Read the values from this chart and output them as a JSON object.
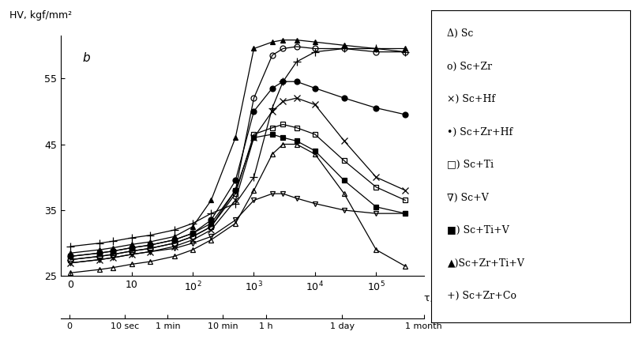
{
  "ylabel": "HV, kgf/mm²",
  "xmin": 0.7,
  "xmax": 600000,
  "ymin": 25,
  "ymax": 61.5,
  "yticks": [
    25,
    35,
    45,
    55
  ],
  "xticks_top": [
    1,
    10,
    100,
    1000,
    10000,
    100000
  ],
  "xtick_labels_top": [
    "0",
    "10",
    "10$^2$",
    "10$^3$",
    "10$^4$",
    "10$^5$"
  ],
  "bottom_time_labels": [
    "0",
    "10 sec",
    "1 min",
    "10 min",
    "1 h",
    "1 day",
    "1 month"
  ],
  "bottom_time_positions": [
    1,
    10,
    60,
    600,
    3600,
    86400,
    2592000
  ],
  "series": {
    "Sc": {
      "marker": "^",
      "fillstyle": "none",
      "x": [
        1,
        3,
        5,
        10,
        20,
        50,
        100,
        200,
        500,
        1000,
        2000,
        3000,
        5000,
        10000,
        30000,
        100000,
        300000
      ],
      "y": [
        25.5,
        26.0,
        26.3,
        26.8,
        27.2,
        28.0,
        29.0,
        30.5,
        33.0,
        38.0,
        43.5,
        45.0,
        45.0,
        43.5,
        37.5,
        29.0,
        26.5
      ]
    },
    "Sc+Zr": {
      "marker": "o",
      "fillstyle": "none",
      "x": [
        1,
        3,
        5,
        10,
        20,
        50,
        100,
        200,
        500,
        1000,
        2000,
        3000,
        5000,
        10000,
        30000,
        100000,
        300000
      ],
      "y": [
        27.5,
        28.0,
        28.3,
        28.8,
        29.2,
        30.0,
        31.0,
        32.5,
        38.0,
        52.0,
        58.5,
        59.5,
        59.8,
        59.5,
        59.5,
        59.0,
        59.0
      ]
    },
    "Sc+Hf": {
      "marker": "x",
      "fillstyle": "full",
      "x": [
        1,
        3,
        5,
        10,
        20,
        50,
        100,
        200,
        500,
        1000,
        2000,
        3000,
        5000,
        10000,
        30000,
        100000,
        300000
      ],
      "y": [
        27.0,
        27.5,
        27.8,
        28.3,
        28.7,
        29.5,
        30.5,
        32.0,
        36.5,
        46.0,
        50.0,
        51.5,
        52.0,
        51.0,
        45.5,
        40.0,
        38.0
      ]
    },
    "Sc+Zr+Hf": {
      "marker": "o",
      "fillstyle": "full",
      "x": [
        1,
        3,
        5,
        10,
        20,
        50,
        100,
        200,
        500,
        1000,
        2000,
        3000,
        5000,
        10000,
        30000,
        100000,
        300000
      ],
      "y": [
        28.0,
        28.5,
        28.8,
        29.3,
        29.7,
        30.5,
        31.5,
        33.5,
        39.5,
        50.0,
        53.5,
        54.5,
        54.5,
        53.5,
        52.0,
        50.5,
        49.5
      ]
    },
    "Sc+Ti": {
      "marker": "s",
      "fillstyle": "none",
      "x": [
        1,
        3,
        5,
        10,
        20,
        50,
        100,
        200,
        500,
        1000,
        2000,
        3000,
        5000,
        10000,
        30000,
        100000,
        300000
      ],
      "y": [
        27.5,
        28.0,
        28.3,
        28.8,
        29.2,
        30.0,
        31.0,
        32.5,
        37.5,
        46.5,
        47.5,
        48.0,
        47.5,
        46.5,
        42.5,
        38.5,
        36.5
      ]
    },
    "Sc+V": {
      "marker": "v",
      "fillstyle": "none",
      "x": [
        1,
        3,
        5,
        10,
        20,
        50,
        100,
        200,
        500,
        1000,
        2000,
        3000,
        5000,
        10000,
        30000,
        100000,
        300000
      ],
      "y": [
        27.0,
        27.5,
        27.8,
        28.3,
        28.7,
        29.2,
        30.0,
        31.0,
        33.5,
        36.5,
        37.5,
        37.5,
        36.8,
        36.0,
        35.0,
        34.5,
        34.5
      ]
    },
    "Sc+Ti+V": {
      "marker": "s",
      "fillstyle": "full",
      "x": [
        1,
        3,
        5,
        10,
        20,
        50,
        100,
        200,
        500,
        1000,
        2000,
        3000,
        5000,
        10000,
        30000,
        100000,
        300000
      ],
      "y": [
        28.0,
        28.5,
        28.8,
        29.3,
        29.7,
        30.5,
        31.5,
        33.0,
        38.0,
        46.0,
        46.5,
        46.0,
        45.5,
        44.0,
        39.5,
        35.5,
        34.5
      ]
    },
    "Sc+Zr+Ti+V": {
      "marker": "^",
      "fillstyle": "full",
      "x": [
        1,
        3,
        5,
        10,
        20,
        50,
        100,
        200,
        500,
        1000,
        2000,
        3000,
        5000,
        10000,
        30000,
        100000,
        300000
      ],
      "y": [
        28.5,
        29.0,
        29.3,
        29.8,
        30.2,
        31.0,
        32.5,
        36.5,
        46.0,
        59.5,
        60.5,
        60.8,
        60.8,
        60.5,
        60.0,
        59.5,
        59.5
      ]
    },
    "Sc+Zr+Co": {
      "marker": "+",
      "fillstyle": "full",
      "x": [
        1,
        3,
        5,
        10,
        20,
        50,
        100,
        200,
        500,
        1000,
        2000,
        3000,
        5000,
        10000,
        30000,
        100000,
        300000
      ],
      "y": [
        29.5,
        30.0,
        30.3,
        30.8,
        31.2,
        32.0,
        33.0,
        34.5,
        36.0,
        40.0,
        50.5,
        54.5,
        57.5,
        59.0,
        59.5,
        59.5,
        59.0
      ]
    }
  },
  "legend_lines": [
    "Δ) Sc",
    "o) Sc+Zr",
    "×) Sc+Hf",
    "•) Sc+Zr+Hf",
    "□) Sc+Ti",
    "∇) Sc+V",
    "■) Sc+Ti+V",
    "▲)Sc+Zr+Ti+V",
    "+) Sc+Zr+Co"
  ]
}
